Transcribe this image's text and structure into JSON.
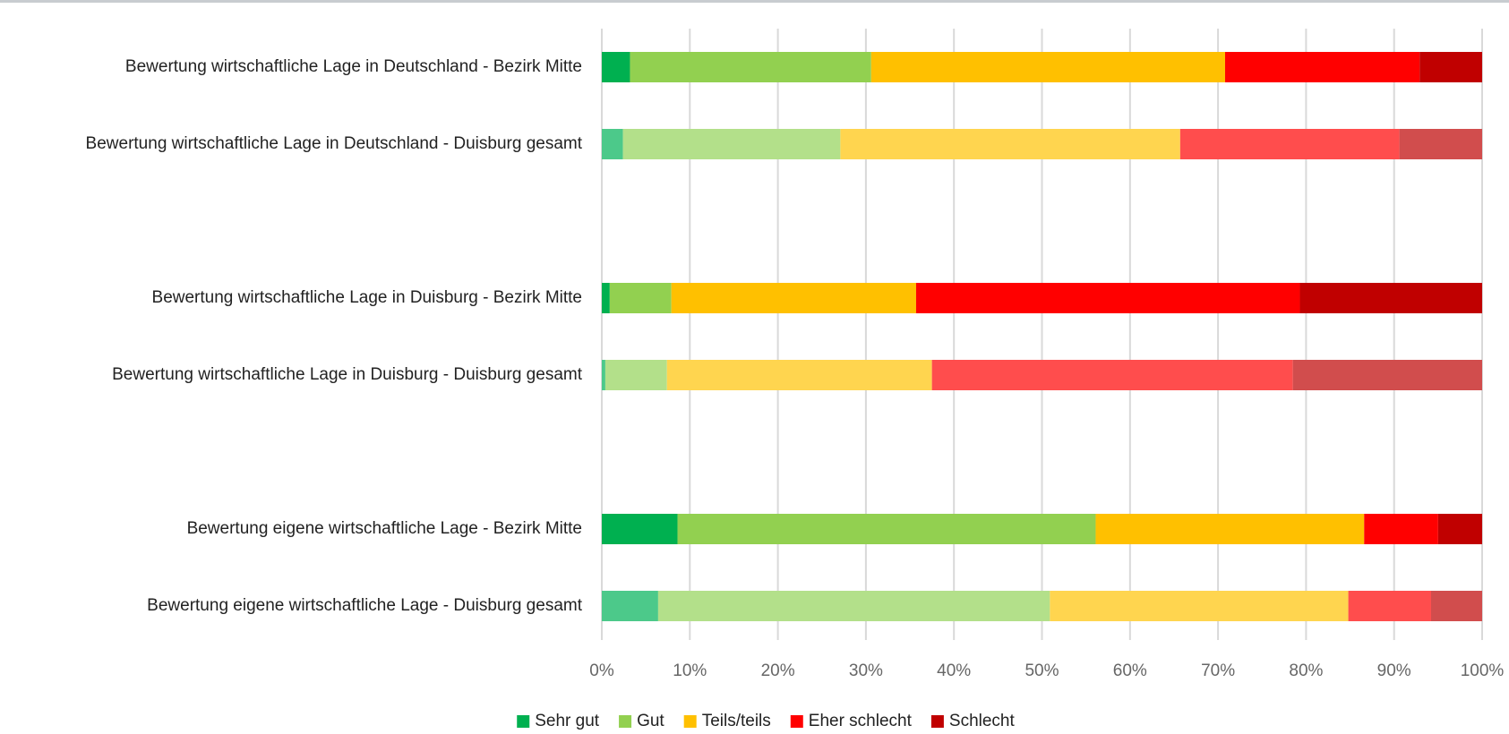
{
  "chart_data": {
    "type": "stacked-barh",
    "categories": [
      "Bewertung wirtschaftliche Lage in Deutschland - Bezirk Mitte",
      "Bewertung wirtschaftliche Lage in Deutschland - Duisburg gesamt",
      null,
      "Bewertung wirtschaftliche Lage in Duisburg - Bezirk Mitte",
      "Bewertung wirtschaftliche Lage in Duisburg - Duisburg gesamt",
      null,
      "Bewertung eigene wirtschaftliche Lage - Bezirk Mitte",
      "Bewertung eigene wirtschaftliche Lage - Duisburg gesamt"
    ],
    "series": [
      {
        "name": "Sehr gut",
        "color": "#00b050",
        "colors": [
          "#00b050",
          "#4cc98a",
          null,
          "#00b050",
          "#4cc98a",
          null,
          "#00b050",
          "#4cc98a"
        ],
        "values": [
          3.2,
          2.4,
          null,
          0.9,
          0.4,
          null,
          8.6,
          6.4
        ]
      },
      {
        "name": "Gut",
        "color": "#92d050",
        "colors": [
          "#92d050",
          "#b3e08a",
          null,
          "#92d050",
          "#b3e08a",
          null,
          "#92d050",
          "#b3e08a"
        ],
        "values": [
          27.4,
          24.7,
          null,
          7.0,
          7.0,
          null,
          47.5,
          44.5
        ]
      },
      {
        "name": "Teils/teils",
        "color": "#ffc000",
        "colors": [
          "#ffc000",
          "#ffd54f",
          null,
          "#ffc000",
          "#ffd54f",
          null,
          "#ffc000",
          "#ffd54f"
        ],
        "values": [
          40.2,
          38.6,
          null,
          27.8,
          30.1,
          null,
          30.5,
          33.9
        ]
      },
      {
        "name": "Eher schlecht",
        "color": "#ff0000",
        "colors": [
          "#ff0000",
          "#ff4d4d",
          null,
          "#ff0000",
          "#ff4d4d",
          null,
          "#ff0000",
          "#ff4d4d"
        ],
        "values": [
          22.1,
          24.9,
          null,
          43.6,
          41.0,
          null,
          8.4,
          9.4
        ]
      },
      {
        "name": "Schlecht",
        "color": "#c00000",
        "colors": [
          "#c00000",
          "#d14d4d",
          null,
          "#c00000",
          "#d14d4d",
          null,
          "#c00000",
          "#d14d4d"
        ],
        "values": [
          7.1,
          9.4,
          null,
          20.7,
          21.5,
          null,
          5.0,
          5.8
        ]
      }
    ],
    "xlim": [
      0,
      100
    ],
    "xticks": [
      {
        "value": 0,
        "label": "0%"
      },
      {
        "value": 10,
        "label": "10%"
      },
      {
        "value": 20,
        "label": "20%"
      },
      {
        "value": 30,
        "label": "30%"
      },
      {
        "value": 40,
        "label": "40%"
      },
      {
        "value": 50,
        "label": "50%"
      },
      {
        "value": 60,
        "label": "60%"
      },
      {
        "value": 70,
        "label": "70%"
      },
      {
        "value": 80,
        "label": "80%"
      },
      {
        "value": 90,
        "label": "90%"
      },
      {
        "value": 100,
        "label": "100%"
      }
    ],
    "grid": true,
    "legend": "bottom"
  }
}
